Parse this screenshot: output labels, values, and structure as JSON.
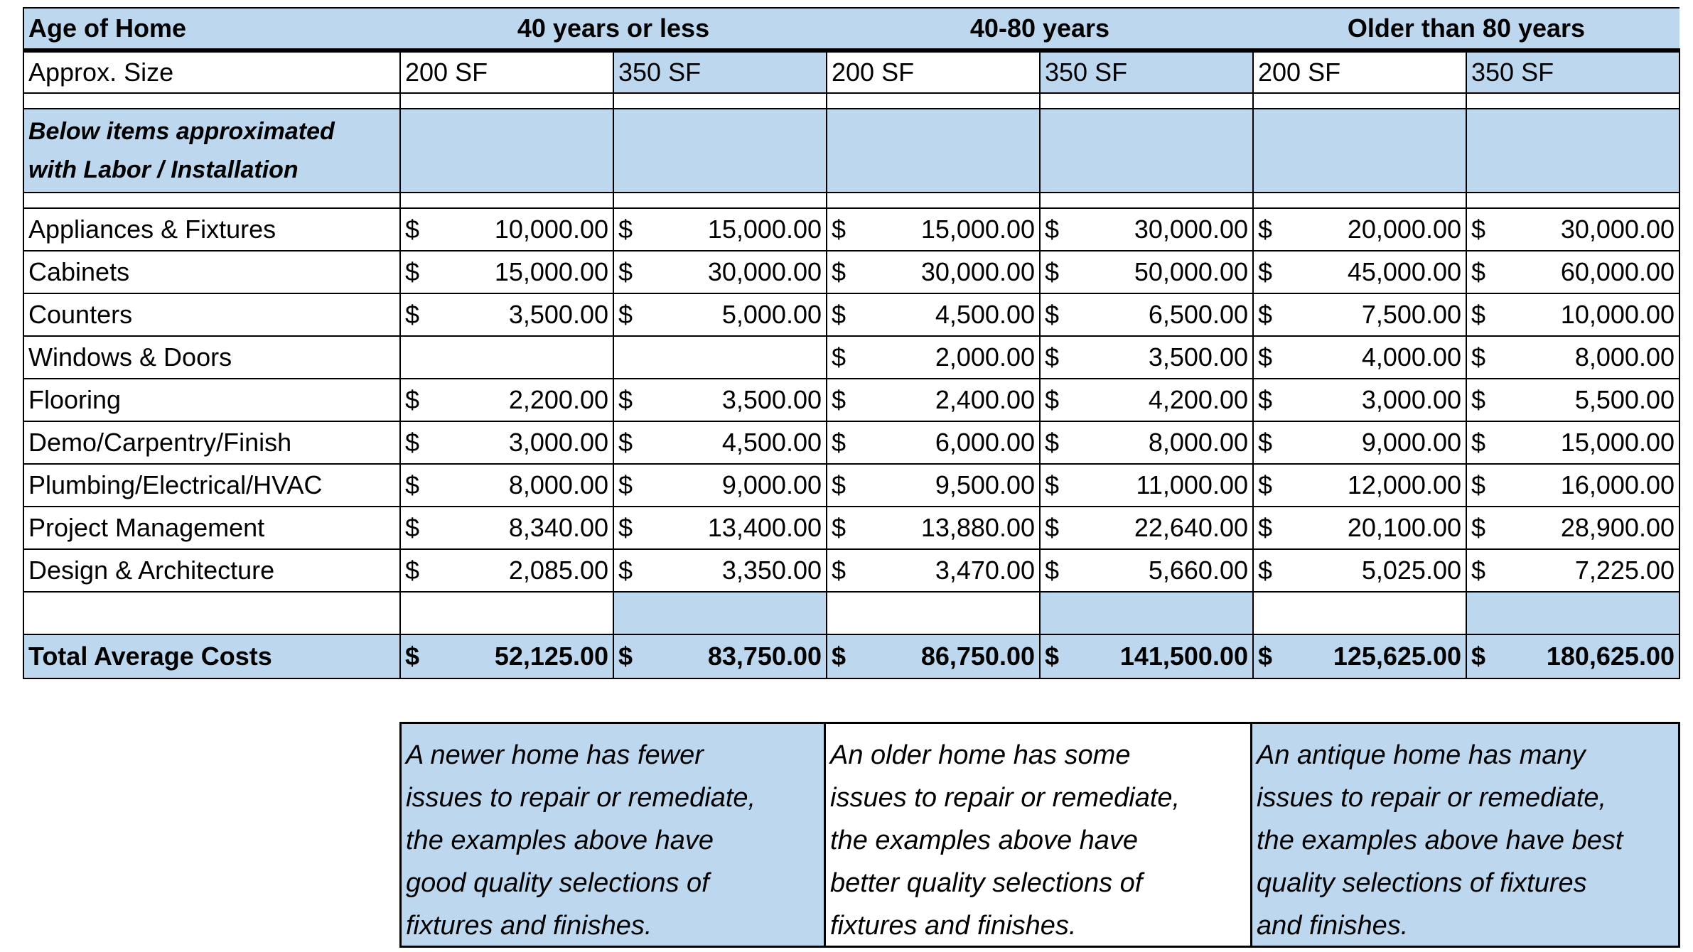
{
  "header": {
    "label": "Age of Home",
    "groups": [
      "40 years or less",
      "40-80 years",
      "Older than 80 years"
    ]
  },
  "size_row": {
    "label": "Approx. Size",
    "sizes": [
      "200 SF",
      "350 SF",
      "200 SF",
      "350 SF",
      "200 SF",
      "350 SF"
    ]
  },
  "note": [
    "Below items approximated",
    "with Labor / Installation"
  ],
  "rows": [
    {
      "label": "Appliances & Fixtures",
      "cells": [
        {
          "currency": "$",
          "amount": "10,000.00"
        },
        {
          "currency": "$",
          "amount": "15,000.00"
        },
        {
          "currency": "$",
          "amount": "15,000.00"
        },
        {
          "currency": "$",
          "amount": "30,000.00"
        },
        {
          "currency": "$",
          "amount": "20,000.00"
        },
        {
          "currency": "$",
          "amount": "30,000.00"
        }
      ]
    },
    {
      "label": "Cabinets",
      "cells": [
        {
          "currency": "$",
          "amount": "15,000.00"
        },
        {
          "currency": "$",
          "amount": "30,000.00"
        },
        {
          "currency": "$",
          "amount": "30,000.00"
        },
        {
          "currency": "$",
          "amount": "50,000.00"
        },
        {
          "currency": "$",
          "amount": "45,000.00"
        },
        {
          "currency": "$",
          "amount": "60,000.00"
        }
      ]
    },
    {
      "label": "Counters",
      "cells": [
        {
          "currency": "$",
          "amount": "3,500.00"
        },
        {
          "currency": "$",
          "amount": "5,000.00"
        },
        {
          "currency": "$",
          "amount": "4,500.00"
        },
        {
          "currency": "$",
          "amount": "6,500.00"
        },
        {
          "currency": "$",
          "amount": "7,500.00"
        },
        {
          "currency": "$",
          "amount": "10,000.00"
        }
      ]
    },
    {
      "label": "Windows & Doors",
      "cells": [
        null,
        null,
        {
          "currency": "$",
          "amount": "2,000.00"
        },
        {
          "currency": "$",
          "amount": "3,500.00"
        },
        {
          "currency": "$",
          "amount": "4,000.00"
        },
        {
          "currency": "$",
          "amount": "8,000.00"
        }
      ]
    },
    {
      "label": "Flooring",
      "cells": [
        {
          "currency": "$",
          "amount": "2,200.00"
        },
        {
          "currency": "$",
          "amount": "3,500.00"
        },
        {
          "currency": "$",
          "amount": "2,400.00"
        },
        {
          "currency": "$",
          "amount": "4,200.00"
        },
        {
          "currency": "$",
          "amount": "3,000.00"
        },
        {
          "currency": "$",
          "amount": "5,500.00"
        }
      ]
    },
    {
      "label": "Demo/Carpentry/Finish",
      "cells": [
        {
          "currency": "$",
          "amount": "3,000.00"
        },
        {
          "currency": "$",
          "amount": "4,500.00"
        },
        {
          "currency": "$",
          "amount": "6,000.00"
        },
        {
          "currency": "$",
          "amount": "8,000.00"
        },
        {
          "currency": "$",
          "amount": "9,000.00"
        },
        {
          "currency": "$",
          "amount": "15,000.00"
        }
      ]
    },
    {
      "label": "Plumbing/Electrical/HVAC",
      "cells": [
        {
          "currency": "$",
          "amount": "8,000.00"
        },
        {
          "currency": "$",
          "amount": "9,000.00"
        },
        {
          "currency": "$",
          "amount": "9,500.00"
        },
        {
          "currency": "$",
          "amount": "11,000.00"
        },
        {
          "currency": "$",
          "amount": "12,000.00"
        },
        {
          "currency": "$",
          "amount": "16,000.00"
        }
      ]
    },
    {
      "label": "Project Management",
      "cells": [
        {
          "currency": "$",
          "amount": "8,340.00"
        },
        {
          "currency": "$",
          "amount": "13,400.00"
        },
        {
          "currency": "$",
          "amount": "13,880.00"
        },
        {
          "currency": "$",
          "amount": "22,640.00"
        },
        {
          "currency": "$",
          "amount": "20,100.00"
        },
        {
          "currency": "$",
          "amount": "28,900.00"
        }
      ]
    },
    {
      "label": "Design & Architecture",
      "cells": [
        {
          "currency": "$",
          "amount": "2,085.00"
        },
        {
          "currency": "$",
          "amount": "3,350.00"
        },
        {
          "currency": "$",
          "amount": "3,470.00"
        },
        {
          "currency": "$",
          "amount": "5,660.00"
        },
        {
          "currency": "$",
          "amount": "5,025.00"
        },
        {
          "currency": "$",
          "amount": "7,225.00"
        }
      ]
    }
  ],
  "total": {
    "label": "Total Average Costs",
    "cells": [
      {
        "currency": "$",
        "amount": "52,125.00"
      },
      {
        "currency": "$",
        "amount": "83,750.00"
      },
      {
        "currency": "$",
        "amount": "86,750.00"
      },
      {
        "currency": "$",
        "amount": "141,500.00"
      },
      {
        "currency": "$",
        "amount": "125,625.00"
      },
      {
        "currency": "$",
        "amount": "180,625.00"
      }
    ]
  },
  "descriptions": [
    [
      "A newer home has fewer",
      "issues to repair or remediate,",
      "the examples above have",
      "good quality selections of",
      "fixtures and finishes."
    ],
    [
      "An older home has some",
      "issues to repair or remediate,",
      "the examples above have",
      "better quality selections of",
      "fixtures and finishes."
    ],
    [
      "An antique home has many",
      "issues to repair or remediate,",
      "the examples above have best",
      "quality selections of fixtures",
      "and finishes."
    ]
  ]
}
